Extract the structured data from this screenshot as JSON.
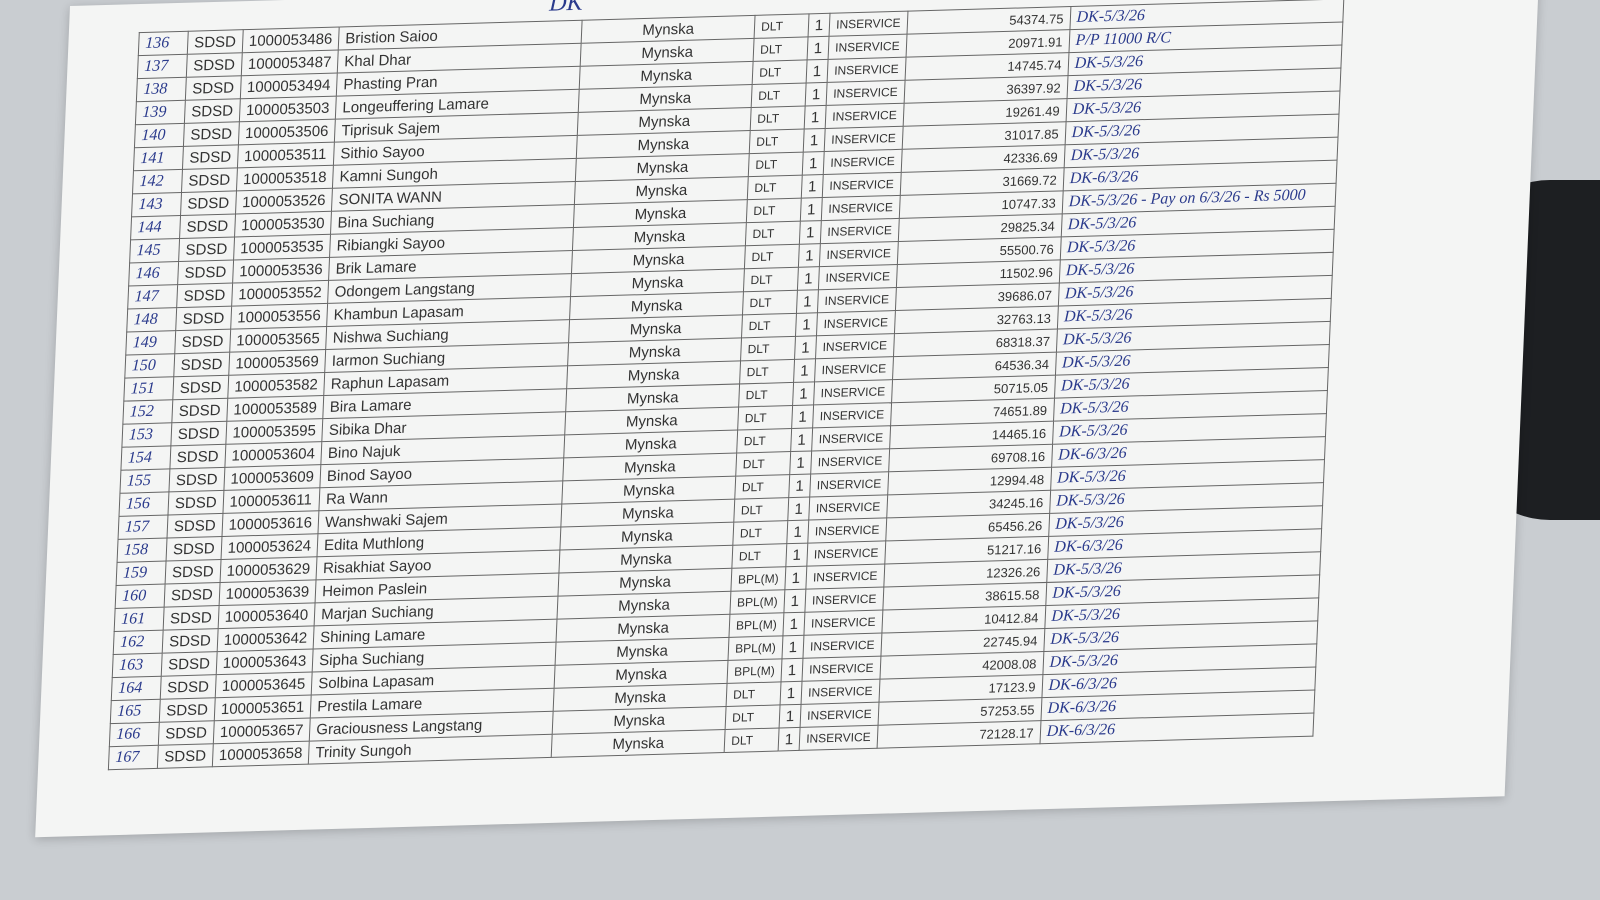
{
  "header": {
    "note": "DK"
  },
  "table": {
    "rows": [
      [
        "136",
        "SDSD",
        "1000053486",
        "Bristion Saioo",
        "Mynska",
        "DLT",
        "1",
        "INSERVICE",
        "54374.75",
        "DK-5/3/26"
      ],
      [
        "137",
        "SDSD",
        "1000053487",
        "Khal Dhar",
        "Mynska",
        "DLT",
        "1",
        "INSERVICE",
        "20971.91",
        "P/P 11000 R/C"
      ],
      [
        "138",
        "SDSD",
        "1000053494",
        "Phasting Pran",
        "Mynska",
        "DLT",
        "1",
        "INSERVICE",
        "14745.74",
        "DK-5/3/26"
      ],
      [
        "139",
        "SDSD",
        "1000053503",
        "Longeuffering Lamare",
        "Mynska",
        "DLT",
        "1",
        "INSERVICE",
        "36397.92",
        "DK-5/3/26"
      ],
      [
        "140",
        "SDSD",
        "1000053506",
        "Tiprisuk Sajem",
        "Mynska",
        "DLT",
        "1",
        "INSERVICE",
        "19261.49",
        "DK-5/3/26"
      ],
      [
        "141",
        "SDSD",
        "1000053511",
        "Sithio Sayoo",
        "Mynska",
        "DLT",
        "1",
        "INSERVICE",
        "31017.85",
        "DK-5/3/26"
      ],
      [
        "142",
        "SDSD",
        "1000053518",
        "Kamni Sungoh",
        "Mynska",
        "DLT",
        "1",
        "INSERVICE",
        "42336.69",
        "DK-5/3/26"
      ],
      [
        "143",
        "SDSD",
        "1000053526",
        "SONITA WANN",
        "Mynska",
        "DLT",
        "1",
        "INSERVICE",
        "31669.72",
        "DK-6/3/26"
      ],
      [
        "144",
        "SDSD",
        "1000053530",
        "Bina Suchiang",
        "Mynska",
        "DLT",
        "1",
        "INSERVICE",
        "10747.33",
        "DK-5/3/26 - Pay on 6/3/26 - Rs 5000"
      ],
      [
        "145",
        "SDSD",
        "1000053535",
        "Ribiangki Sayoo",
        "Mynska",
        "DLT",
        "1",
        "INSERVICE",
        "29825.34",
        "DK-5/3/26"
      ],
      [
        "146",
        "SDSD",
        "1000053536",
        "Brik Lamare",
        "Mynska",
        "DLT",
        "1",
        "INSERVICE",
        "55500.76",
        "DK-5/3/26"
      ],
      [
        "147",
        "SDSD",
        "1000053552",
        "Odongem Langstang",
        "Mynska",
        "DLT",
        "1",
        "INSERVICE",
        "11502.96",
        "DK-5/3/26"
      ],
      [
        "148",
        "SDSD",
        "1000053556",
        "Khambun Lapasam",
        "Mynska",
        "DLT",
        "1",
        "INSERVICE",
        "39686.07",
        "DK-5/3/26"
      ],
      [
        "149",
        "SDSD",
        "1000053565",
        "Nishwa Suchiang",
        "Mynska",
        "DLT",
        "1",
        "INSERVICE",
        "32763.13",
        "DK-5/3/26"
      ],
      [
        "150",
        "SDSD",
        "1000053569",
        "Iarmon Suchiang",
        "Mynska",
        "DLT",
        "1",
        "INSERVICE",
        "68318.37",
        "DK-5/3/26"
      ],
      [
        "151",
        "SDSD",
        "1000053582",
        "Raphun Lapasam",
        "Mynska",
        "DLT",
        "1",
        "INSERVICE",
        "64536.34",
        "DK-5/3/26"
      ],
      [
        "152",
        "SDSD",
        "1000053589",
        "Bira Lamare",
        "Mynska",
        "DLT",
        "1",
        "INSERVICE",
        "50715.05",
        "DK-5/3/26"
      ],
      [
        "153",
        "SDSD",
        "1000053595",
        "Sibika Dhar",
        "Mynska",
        "DLT",
        "1",
        "INSERVICE",
        "74651.89",
        "DK-5/3/26"
      ],
      [
        "154",
        "SDSD",
        "1000053604",
        "Bino Najuk",
        "Mynska",
        "DLT",
        "1",
        "INSERVICE",
        "14465.16",
        "DK-5/3/26"
      ],
      [
        "155",
        "SDSD",
        "1000053609",
        "Binod Sayoo",
        "Mynska",
        "DLT",
        "1",
        "INSERVICE",
        "69708.16",
        "DK-6/3/26"
      ],
      [
        "156",
        "SDSD",
        "1000053611",
        "Ra Wann",
        "Mynska",
        "DLT",
        "1",
        "INSERVICE",
        "12994.48",
        "DK-5/3/26"
      ],
      [
        "157",
        "SDSD",
        "1000053616",
        "Wanshwaki Sajem",
        "Mynska",
        "DLT",
        "1",
        "INSERVICE",
        "34245.16",
        "DK-5/3/26"
      ],
      [
        "158",
        "SDSD",
        "1000053624",
        "Edita Muthlong",
        "Mynska",
        "DLT",
        "1",
        "INSERVICE",
        "65456.26",
        "DK-5/3/26"
      ],
      [
        "159",
        "SDSD",
        "1000053629",
        "Risakhiat Sayoo",
        "Mynska",
        "DLT",
        "1",
        "INSERVICE",
        "51217.16",
        "DK-6/3/26"
      ],
      [
        "160",
        "SDSD",
        "1000053639",
        "Heimon Paslein",
        "Mynska",
        "BPL(M)",
        "1",
        "INSERVICE",
        "12326.26",
        "DK-5/3/26"
      ],
      [
        "161",
        "SDSD",
        "1000053640",
        "Marjan Suchiang",
        "Mynska",
        "BPL(M)",
        "1",
        "INSERVICE",
        "38615.58",
        "DK-5/3/26"
      ],
      [
        "162",
        "SDSD",
        "1000053642",
        "Shining Lamare",
        "Mynska",
        "BPL(M)",
        "1",
        "INSERVICE",
        "10412.84",
        "DK-5/3/26"
      ],
      [
        "163",
        "SDSD",
        "1000053643",
        "Sipha Suchiang",
        "Mynska",
        "BPL(M)",
        "1",
        "INSERVICE",
        "22745.94",
        "DK-5/3/26"
      ],
      [
        "164",
        "SDSD",
        "1000053645",
        "Solbina Lapasam",
        "Mynska",
        "BPL(M)",
        "1",
        "INSERVICE",
        "42008.08",
        "DK-5/3/26"
      ],
      [
        "165",
        "SDSD",
        "1000053651",
        "Prestila Lamare",
        "Mynska",
        "DLT",
        "1",
        "INSERVICE",
        "17123.9",
        "DK-6/3/26"
      ],
      [
        "166",
        "SDSD",
        "1000053657",
        "Graciousness Langstang",
        "Mynska",
        "DLT",
        "1",
        "INSERVICE",
        "57253.55",
        "DK-6/3/26"
      ],
      [
        "167",
        "SDSD",
        "1000053658",
        "Trinity Sungoh",
        "Mynska",
        "DLT",
        "1",
        "INSERVICE",
        "72128.17",
        "DK-6/3/26"
      ]
    ]
  }
}
